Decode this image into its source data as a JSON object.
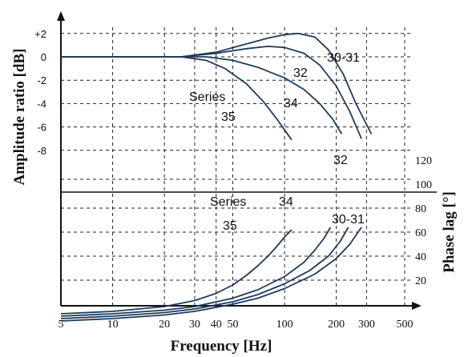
{
  "chart_data": {
    "type": "line",
    "xlabel": "Frequency [Hz]",
    "x_scale": "log",
    "x_ticks": [
      "5",
      "10",
      "20",
      "30",
      "40",
      "50",
      "100",
      "200",
      "300",
      "500"
    ],
    "x_tick_values": [
      5,
      10,
      20,
      30,
      40,
      50,
      100,
      200,
      300,
      500
    ],
    "xlim": [
      5,
      500
    ],
    "grid": true,
    "line_color": "#1f3b5c",
    "amplitude": {
      "ylabel": "Amplitude ratio  [dB]",
      "y_ticks": [
        "+2",
        "0",
        "-2",
        "-4",
        "-6",
        "-8"
      ],
      "y_tick_values": [
        2,
        0,
        -2,
        -4,
        -6,
        -8
      ],
      "series": [
        {
          "name": "30-31",
          "label_lines": [
            "30-31"
          ],
          "x": [
            5,
            25,
            40,
            60,
            80,
            100,
            120,
            150,
            180,
            220,
            260,
            320
          ],
          "y": [
            0,
            0,
            0.4,
            1.1,
            1.6,
            1.9,
            2.0,
            1.7,
            0.6,
            -1.5,
            -4.0,
            -6.6
          ]
        },
        {
          "name": "32",
          "label_lines": [
            "32"
          ],
          "x": [
            5,
            25,
            40,
            60,
            80,
            100,
            130,
            160,
            200,
            240,
            280
          ],
          "y": [
            0,
            0,
            0.3,
            0.7,
            0.9,
            0.8,
            0.3,
            -0.7,
            -2.5,
            -4.7,
            -7.0
          ]
        },
        {
          "name": "34",
          "label_lines": [
            "34"
          ],
          "x": [
            5,
            25,
            35,
            50,
            70,
            100,
            130,
            160,
            190,
            215
          ],
          "y": [
            0,
            0,
            0,
            -0.3,
            -0.9,
            -1.8,
            -2.8,
            -4.0,
            -5.3,
            -6.6
          ]
        },
        {
          "name": "Series 35",
          "label_lines": [
            "Series",
            "35"
          ],
          "x": [
            5,
            25,
            35,
            45,
            60,
            75,
            90,
            110
          ],
          "y": [
            0,
            0,
            -0.3,
            -1.0,
            -2.3,
            -3.8,
            -5.3,
            -7.1
          ]
        }
      ]
    },
    "phase": {
      "ylabel": "Phase lag [°]",
      "y_ticks": [
        "120",
        "100",
        "80",
        "60",
        "40",
        "20"
      ],
      "y_tick_values": [
        120,
        100,
        80,
        60,
        40,
        20
      ],
      "series": [
        {
          "name": "Series 35",
          "label_lines": [
            "Series",
            "35"
          ],
          "x": [
            5,
            10,
            20,
            30,
            40,
            50,
            60,
            70,
            80,
            90,
            100,
            110
          ],
          "y": [
            -8,
            -6,
            -2,
            3,
            9,
            16,
            24,
            32,
            40,
            48,
            56,
            62
          ]
        },
        {
          "name": "34",
          "label_lines": [
            "34"
          ],
          "x": [
            5,
            10,
            20,
            30,
            50,
            70,
            100,
            130,
            150,
            170,
            185
          ],
          "y": [
            -10,
            -8,
            -5,
            -2,
            5,
            12,
            23,
            35,
            45,
            55,
            64
          ]
        },
        {
          "name": "32",
          "label_lines": [
            "32"
          ],
          "x": [
            5,
            10,
            20,
            30,
            50,
            70,
            100,
            140,
            180,
            210,
            235
          ],
          "y": [
            -12,
            -10,
            -7,
            -4,
            2,
            8,
            17,
            28,
            40,
            52,
            64
          ]
        },
        {
          "name": "30-31",
          "label_lines": [
            "30-31"
          ],
          "x": [
            5,
            10,
            20,
            30,
            50,
            70,
            100,
            150,
            200,
            240,
            280
          ],
          "y": [
            -14,
            -12,
            -9,
            -6,
            0,
            5,
            13,
            25,
            38,
            50,
            64
          ]
        }
      ]
    }
  }
}
